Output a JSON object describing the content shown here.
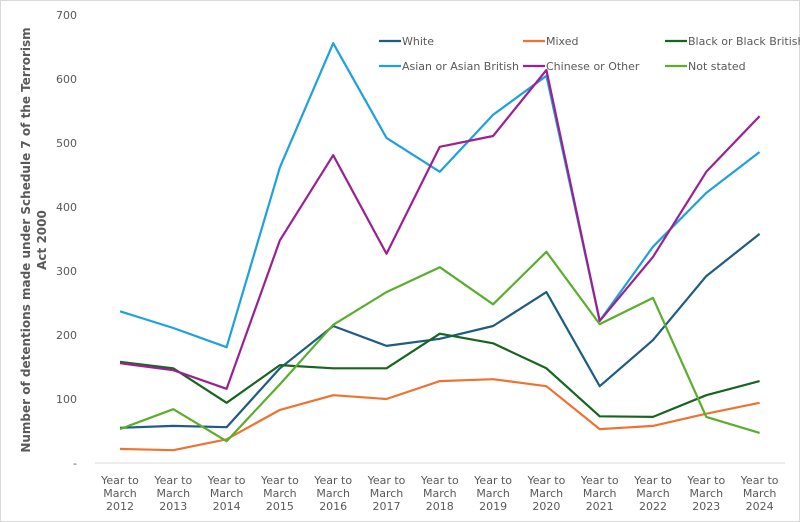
{
  "chart_data": {
    "type": "line",
    "title": "",
    "xlabel": "",
    "ylabel": "Number of detentions made under Schedule 7 of the Terrorism Act 2000",
    "ylim": [
      0,
      700
    ],
    "yticks": [
      "-",
      "100",
      "200",
      "300",
      "400",
      "500",
      "600",
      "700"
    ],
    "grid": false,
    "legend_position": "top-right",
    "categories": [
      [
        "Year to",
        "March",
        "2012"
      ],
      [
        "Year to",
        "March",
        "2013"
      ],
      [
        "Year to",
        "March",
        "2014"
      ],
      [
        "Year to",
        "March",
        "2015"
      ],
      [
        "Year to",
        "March",
        "2016"
      ],
      [
        "Year to",
        "March",
        "2017"
      ],
      [
        "Year to",
        "March",
        "2018"
      ],
      [
        "Year to",
        "March",
        "2019"
      ],
      [
        "Year to",
        "March",
        "2020"
      ],
      [
        "Year to",
        "March",
        "2021"
      ],
      [
        "Year to",
        "March",
        "2022"
      ],
      [
        "Year to",
        "March",
        "2023"
      ],
      [
        "Year to",
        "March",
        "2024"
      ]
    ],
    "series": [
      {
        "name": "White",
        "color": "#1f5c82",
        "values": [
          55,
          58,
          56,
          148,
          214,
          183,
          194,
          214,
          267,
          120,
          192,
          292,
          358
        ]
      },
      {
        "name": "Mixed",
        "color": "#ee7330",
        "values": [
          22,
          20,
          37,
          83,
          106,
          100,
          128,
          131,
          120,
          53,
          58,
          77,
          94
        ]
      },
      {
        "name": "Black or Black British",
        "color": "#17651f",
        "values": [
          158,
          148,
          94,
          153,
          148,
          148,
          202,
          187,
          148,
          73,
          72,
          106,
          128
        ]
      },
      {
        "name": "Asian or Asian British",
        "color": "#1ea1dc",
        "values": [
          237,
          211,
          181,
          462,
          656,
          508,
          455,
          544,
          605,
          222,
          338,
          422,
          486
        ]
      },
      {
        "name": "Chinese or Other",
        "color": "#9b2192",
        "values": [
          156,
          145,
          116,
          348,
          481,
          327,
          494,
          511,
          614,
          222,
          322,
          455,
          542
        ]
      },
      {
        "name": "Not stated",
        "color": "#5aae2e",
        "values": [
          53,
          84,
          34,
          123,
          216,
          267,
          306,
          248,
          330,
          217,
          258,
          72,
          47
        ]
      }
    ]
  }
}
